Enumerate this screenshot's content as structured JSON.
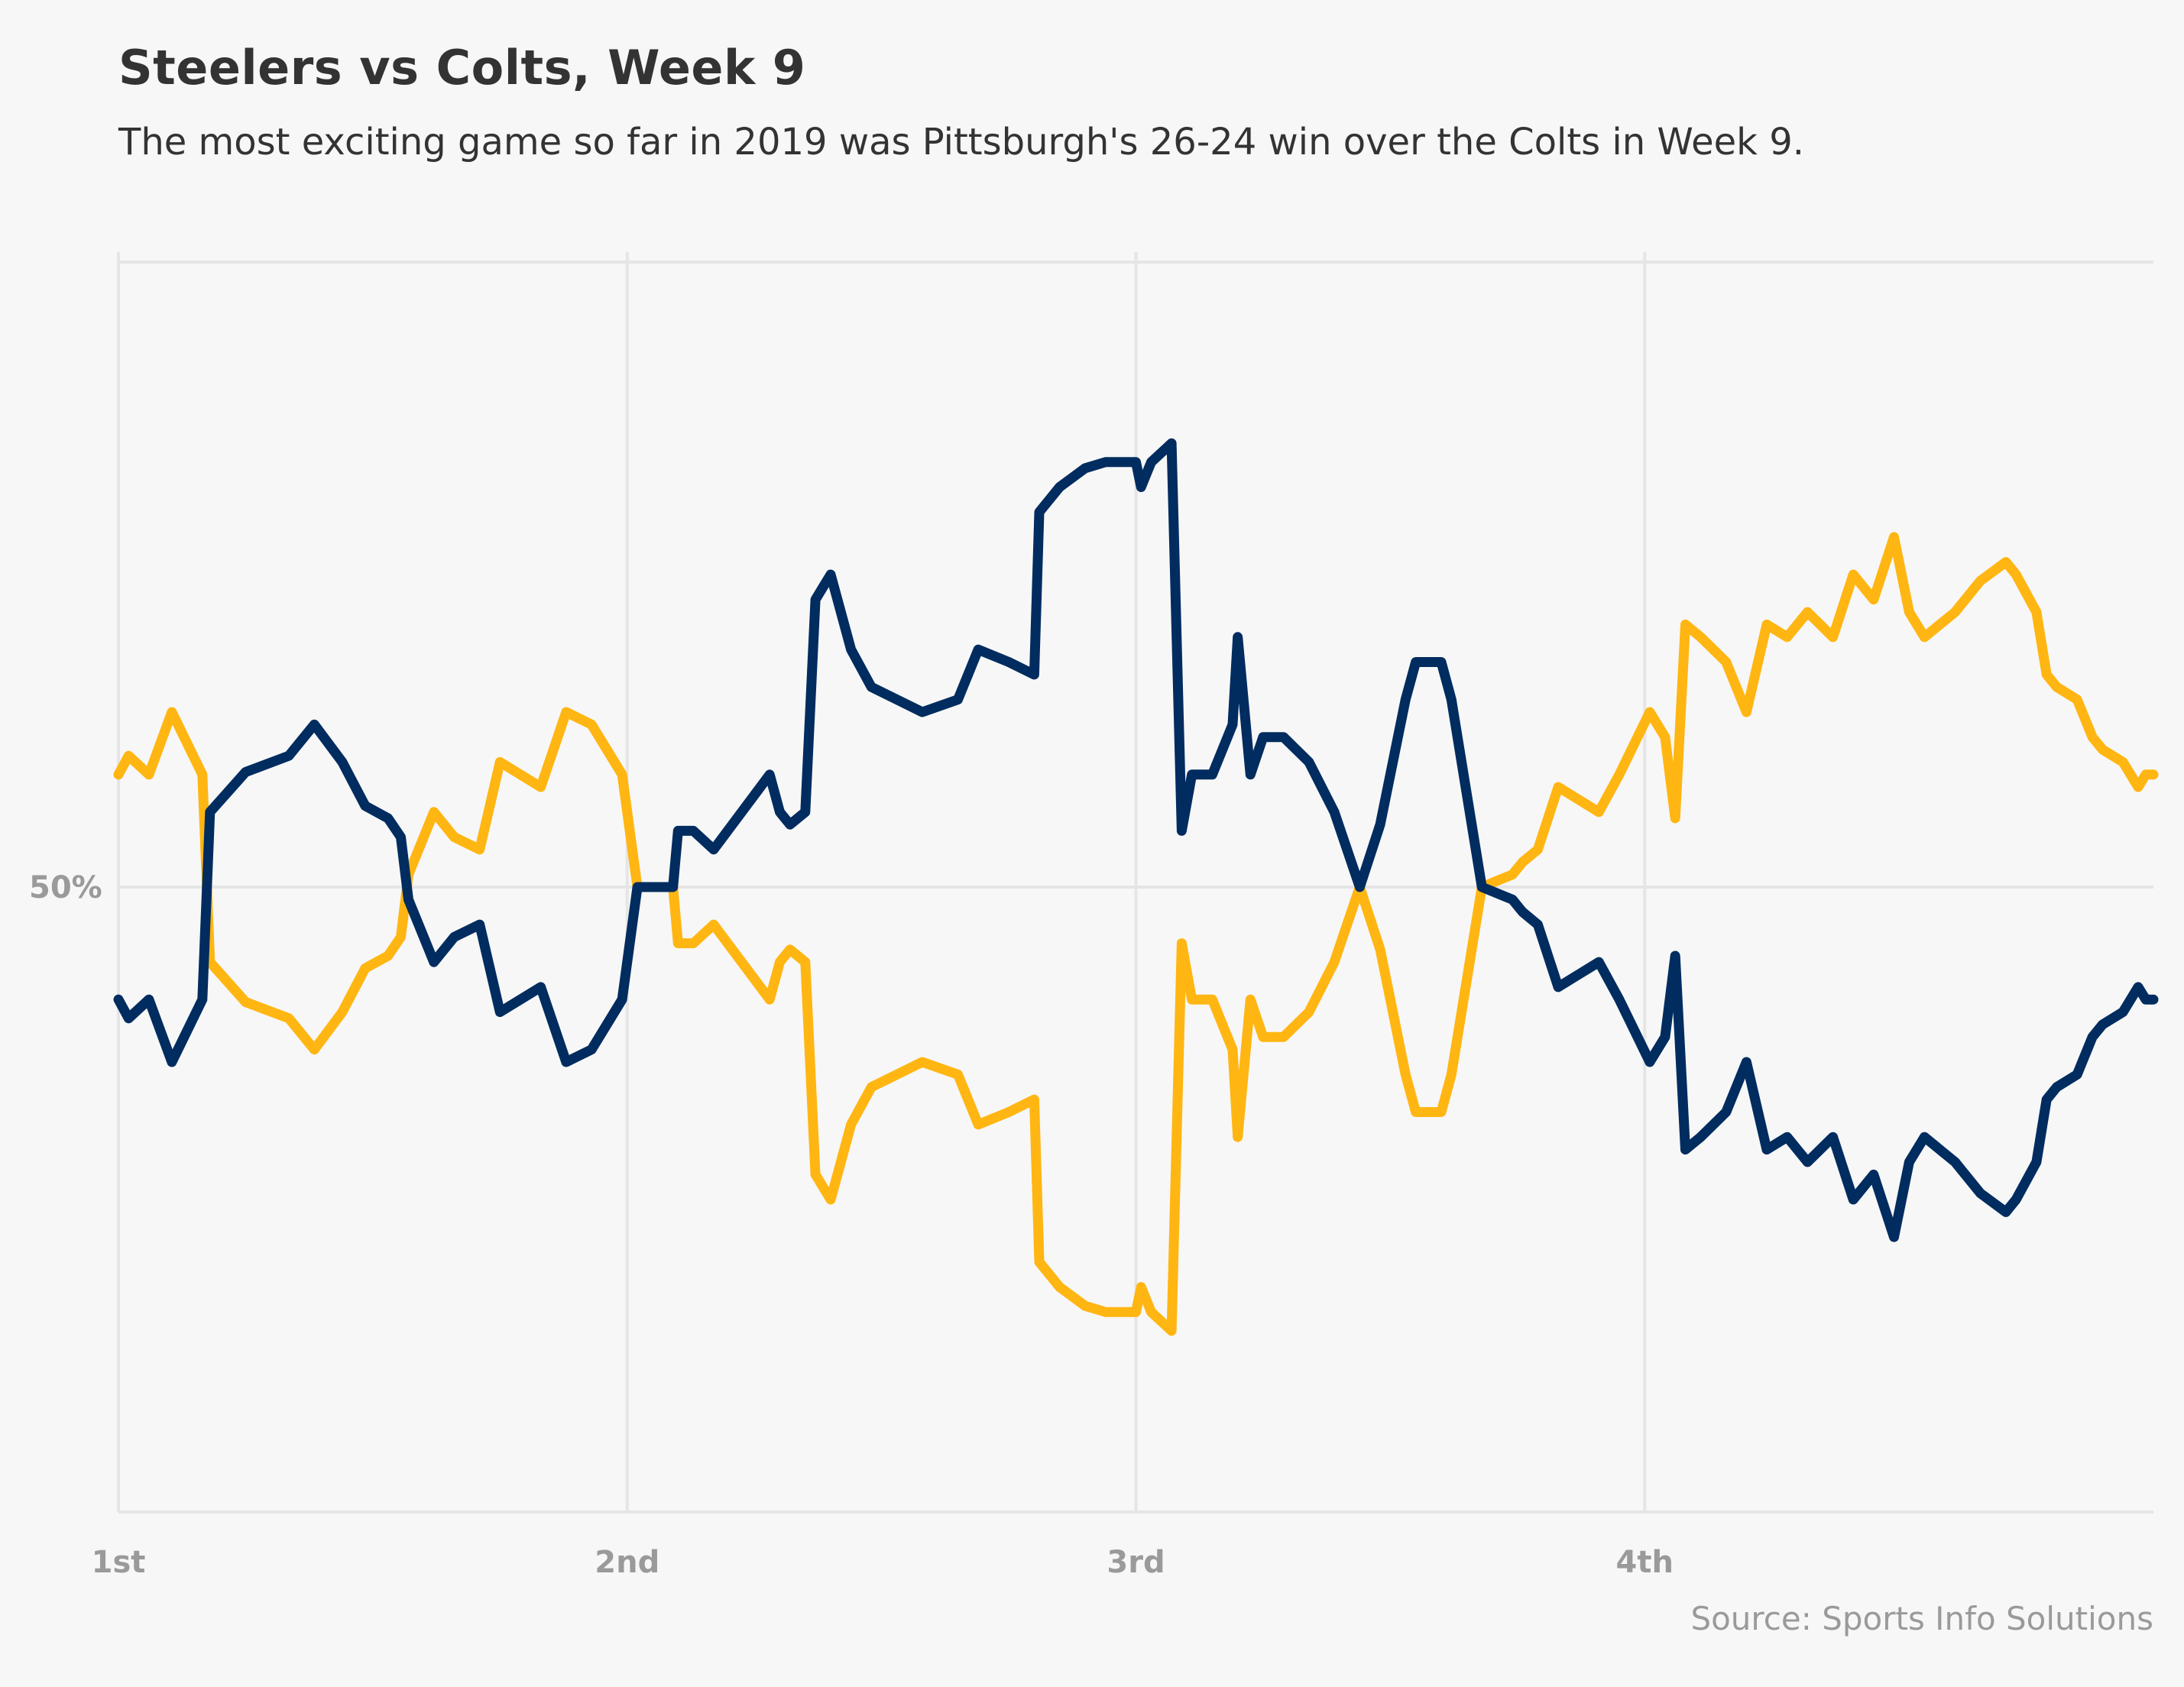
{
  "title": "Steelers vs Colts, Week 9",
  "subtitle": "The most exciting game so far in 2019 was Pittsburgh's 26-24 win over the Colts in Week 9.",
  "source": "Source: Sports Info Solutions",
  "chart_data": {
    "type": "line",
    "title": "Steelers vs Colts, Week 9",
    "subtitle": "The most exciting game so far in 2019 was Pittsburgh's 26-24 win over the Colts in Week 9.",
    "x_ticks": [
      {
        "label": "1st",
        "x": 0
      },
      {
        "label": "2nd",
        "x": 1
      },
      {
        "label": "3rd",
        "x": 2
      },
      {
        "label": "4th",
        "x": 3
      }
    ],
    "y_ticks": [
      {
        "label": "50%",
        "y": 50
      }
    ],
    "xlim": [
      0,
      4
    ],
    "ylim": [
      0,
      100
    ],
    "grid": true,
    "legend": "none",
    "colors": {
      "gold": "#ffb612",
      "navy": "#002c5f",
      "grid": "#e5e5e5",
      "text": "#333333",
      "muted": "#9a9a9a"
    },
    "series": [
      {
        "color": "#ffb612",
        "points": [
          [
            0.0,
            59.0
          ],
          [
            0.02,
            60.5
          ],
          [
            0.06,
            59.0
          ],
          [
            0.105,
            64.0
          ],
          [
            0.165,
            59.0
          ],
          [
            0.18,
            44.0
          ],
          [
            0.25,
            40.8
          ],
          [
            0.335,
            39.5
          ],
          [
            0.385,
            37.0
          ],
          [
            0.44,
            40.0
          ],
          [
            0.485,
            43.5
          ],
          [
            0.53,
            44.5
          ],
          [
            0.555,
            46.0
          ],
          [
            0.57,
            51.0
          ],
          [
            0.62,
            56.0
          ],
          [
            0.66,
            54.0
          ],
          [
            0.71,
            53.0
          ],
          [
            0.75,
            60.0
          ],
          [
            0.83,
            58.0
          ],
          [
            0.88,
            64.0
          ],
          [
            0.93,
            63.0
          ],
          [
            0.99,
            59.0
          ],
          [
            1.02,
            50.0
          ],
          [
            1.05,
            50.0
          ],
          [
            1.09,
            50.0
          ],
          [
            1.1,
            45.5
          ],
          [
            1.13,
            45.5
          ],
          [
            1.17,
            47.0
          ],
          [
            1.28,
            41.0
          ],
          [
            1.3,
            44.0
          ],
          [
            1.32,
            45.0
          ],
          [
            1.35,
            44.0
          ],
          [
            1.37,
            27.0
          ],
          [
            1.4,
            25.0
          ],
          [
            1.44,
            31.0
          ],
          [
            1.48,
            34.0
          ],
          [
            1.53,
            35.0
          ],
          [
            1.58,
            36.0
          ],
          [
            1.65,
            35.0
          ],
          [
            1.69,
            31.0
          ],
          [
            1.75,
            32.0
          ],
          [
            1.8,
            33.0
          ],
          [
            1.81,
            20.0
          ],
          [
            1.85,
            18.0
          ],
          [
            1.9,
            16.5
          ],
          [
            1.94,
            16.0
          ],
          [
            1.98,
            16.0
          ],
          [
            2.0,
            16.0
          ],
          [
            2.01,
            18.0
          ],
          [
            2.03,
            16.0
          ],
          [
            2.07,
            14.5
          ],
          [
            2.09,
            45.5
          ],
          [
            2.11,
            41.0
          ],
          [
            2.15,
            41.0
          ],
          [
            2.19,
            37.0
          ],
          [
            2.2,
            30.0
          ],
          [
            2.225,
            41.0
          ],
          [
            2.25,
            38.0
          ],
          [
            2.29,
            38.0
          ],
          [
            2.34,
            40.0
          ],
          [
            2.39,
            44.0
          ],
          [
            2.44,
            50.0
          ],
          [
            2.48,
            45.0
          ],
          [
            2.53,
            35.0
          ],
          [
            2.55,
            32.0
          ],
          [
            2.6,
            32.0
          ],
          [
            2.62,
            35.0
          ],
          [
            2.68,
            50.0
          ],
          [
            2.74,
            51.0
          ],
          [
            2.76,
            52.0
          ],
          [
            2.79,
            53.0
          ],
          [
            2.83,
            58.0
          ],
          [
            2.87,
            57.0
          ],
          [
            2.91,
            56.0
          ],
          [
            2.95,
            59.0
          ],
          [
            3.01,
            64.0
          ],
          [
            3.04,
            62.0
          ],
          [
            3.06,
            55.5
          ],
          [
            3.08,
            71.0
          ],
          [
            3.11,
            70.0
          ],
          [
            3.16,
            68.0
          ],
          [
            3.2,
            64.0
          ],
          [
            3.24,
            71.0
          ],
          [
            3.28,
            70.0
          ],
          [
            3.32,
            72.0
          ],
          [
            3.37,
            70.0
          ],
          [
            3.41,
            75.0
          ],
          [
            3.45,
            73.0
          ],
          [
            3.49,
            78.0
          ],
          [
            3.52,
            72.0
          ],
          [
            3.55,
            70.0
          ],
          [
            3.61,
            72.0
          ],
          [
            3.66,
            74.5
          ],
          [
            3.71,
            76.0
          ],
          [
            3.73,
            75.0
          ],
          [
            3.77,
            72.0
          ],
          [
            3.79,
            67.0
          ],
          [
            3.81,
            66.0
          ],
          [
            3.85,
            65.0
          ],
          [
            3.88,
            62.0
          ],
          [
            3.9,
            61.0
          ],
          [
            3.94,
            60.0
          ],
          [
            3.97,
            58.0
          ],
          [
            3.985,
            59.0
          ],
          [
            4.0,
            59.0
          ]
        ]
      },
      {
        "color": "#002c5f",
        "points": [
          [
            0.0,
            41.0
          ],
          [
            0.02,
            39.5
          ],
          [
            0.06,
            41.0
          ],
          [
            0.105,
            36.0
          ],
          [
            0.165,
            41.0
          ],
          [
            0.18,
            56.0
          ],
          [
            0.25,
            59.2
          ],
          [
            0.335,
            60.5
          ],
          [
            0.385,
            63.0
          ],
          [
            0.44,
            60.0
          ],
          [
            0.485,
            56.5
          ],
          [
            0.53,
            55.5
          ],
          [
            0.555,
            54.0
          ],
          [
            0.57,
            49.0
          ],
          [
            0.62,
            44.0
          ],
          [
            0.66,
            46.0
          ],
          [
            0.71,
            47.0
          ],
          [
            0.75,
            40.0
          ],
          [
            0.83,
            42.0
          ],
          [
            0.88,
            36.0
          ],
          [
            0.93,
            37.0
          ],
          [
            0.99,
            41.0
          ],
          [
            1.02,
            50.0
          ],
          [
            1.05,
            50.0
          ],
          [
            1.09,
            50.0
          ],
          [
            1.1,
            54.5
          ],
          [
            1.13,
            54.5
          ],
          [
            1.17,
            53.0
          ],
          [
            1.28,
            59.0
          ],
          [
            1.3,
            56.0
          ],
          [
            1.32,
            55.0
          ],
          [
            1.35,
            56.0
          ],
          [
            1.37,
            73.0
          ],
          [
            1.4,
            75.0
          ],
          [
            1.44,
            69.0
          ],
          [
            1.48,
            66.0
          ],
          [
            1.53,
            65.0
          ],
          [
            1.58,
            64.0
          ],
          [
            1.65,
            65.0
          ],
          [
            1.69,
            69.0
          ],
          [
            1.75,
            68.0
          ],
          [
            1.8,
            67.0
          ],
          [
            1.81,
            80.0
          ],
          [
            1.85,
            82.0
          ],
          [
            1.9,
            83.5
          ],
          [
            1.94,
            84.0
          ],
          [
            1.98,
            84.0
          ],
          [
            2.0,
            84.0
          ],
          [
            2.01,
            82.0
          ],
          [
            2.03,
            84.0
          ],
          [
            2.07,
            85.5
          ],
          [
            2.09,
            54.5
          ],
          [
            2.11,
            59.0
          ],
          [
            2.15,
            59.0
          ],
          [
            2.19,
            63.0
          ],
          [
            2.2,
            70.0
          ],
          [
            2.225,
            59.0
          ],
          [
            2.25,
            62.0
          ],
          [
            2.29,
            62.0
          ],
          [
            2.34,
            60.0
          ],
          [
            2.39,
            56.0
          ],
          [
            2.44,
            50.0
          ],
          [
            2.48,
            55.0
          ],
          [
            2.53,
            65.0
          ],
          [
            2.55,
            68.0
          ],
          [
            2.6,
            68.0
          ],
          [
            2.62,
            65.0
          ],
          [
            2.68,
            50.0
          ],
          [
            2.74,
            49.0
          ],
          [
            2.76,
            48.0
          ],
          [
            2.79,
            47.0
          ],
          [
            2.83,
            42.0
          ],
          [
            2.87,
            43.0
          ],
          [
            2.91,
            44.0
          ],
          [
            2.95,
            41.0
          ],
          [
            3.01,
            36.0
          ],
          [
            3.04,
            38.0
          ],
          [
            3.06,
            44.5
          ],
          [
            3.08,
            29.0
          ],
          [
            3.11,
            30.0
          ],
          [
            3.16,
            32.0
          ],
          [
            3.2,
            36.0
          ],
          [
            3.24,
            29.0
          ],
          [
            3.28,
            30.0
          ],
          [
            3.32,
            28.0
          ],
          [
            3.37,
            30.0
          ],
          [
            3.41,
            25.0
          ],
          [
            3.45,
            27.0
          ],
          [
            3.49,
            22.0
          ],
          [
            3.52,
            28.0
          ],
          [
            3.55,
            30.0
          ],
          [
            3.61,
            28.0
          ],
          [
            3.66,
            25.5
          ],
          [
            3.71,
            24.0
          ],
          [
            3.73,
            25.0
          ],
          [
            3.77,
            28.0
          ],
          [
            3.79,
            33.0
          ],
          [
            3.81,
            34.0
          ],
          [
            3.85,
            35.0
          ],
          [
            3.88,
            38.0
          ],
          [
            3.9,
            39.0
          ],
          [
            3.94,
            40.0
          ],
          [
            3.97,
            42.0
          ],
          [
            3.985,
            41.0
          ],
          [
            4.0,
            41.0
          ]
        ]
      }
    ]
  }
}
